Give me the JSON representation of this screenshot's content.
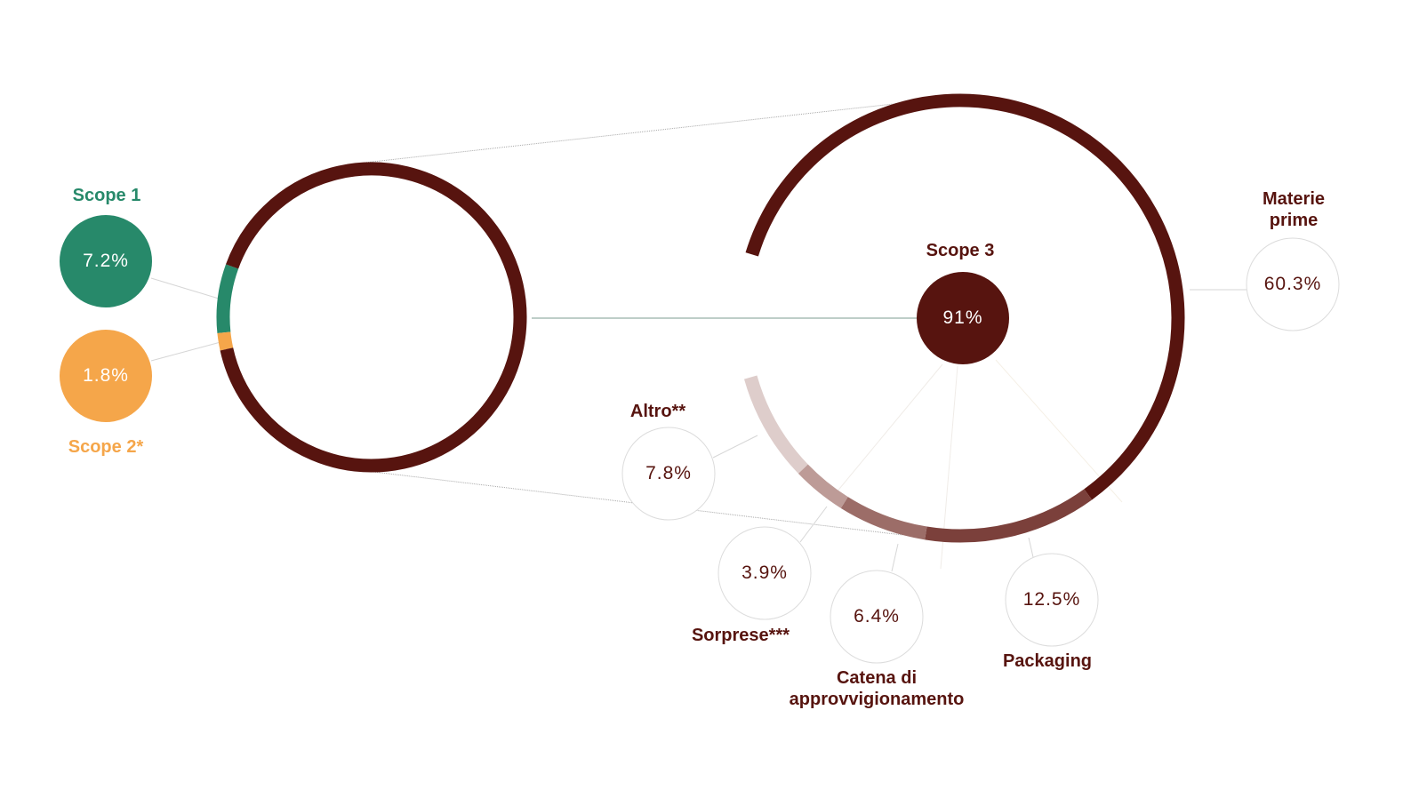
{
  "chart_data": [
    {
      "type": "donut",
      "categories": [
        "Scope 1",
        "Scope 2*",
        "Scope 3"
      ],
      "values": [
        7.2,
        1.8,
        91
      ],
      "value_labels": [
        "7.2%",
        "1.8%",
        "91%"
      ],
      "colors": [
        "#27896a",
        "#f5a64a",
        "#57140f"
      ]
    },
    {
      "type": "donut",
      "categories": [
        "Materie prime",
        "Packaging",
        "Catena di approvvigionamento",
        "Sorprese***",
        "Altro**"
      ],
      "values": [
        60.3,
        12.5,
        6.4,
        3.9,
        7.8
      ],
      "value_labels": [
        "60.3%",
        "12.5%",
        "6.4%",
        "3.9%",
        "7.8%"
      ],
      "colors": [
        "#57140f",
        "#7b403b",
        "#9c6d68",
        "#bd9b97",
        "#decdcb"
      ]
    }
  ]
}
